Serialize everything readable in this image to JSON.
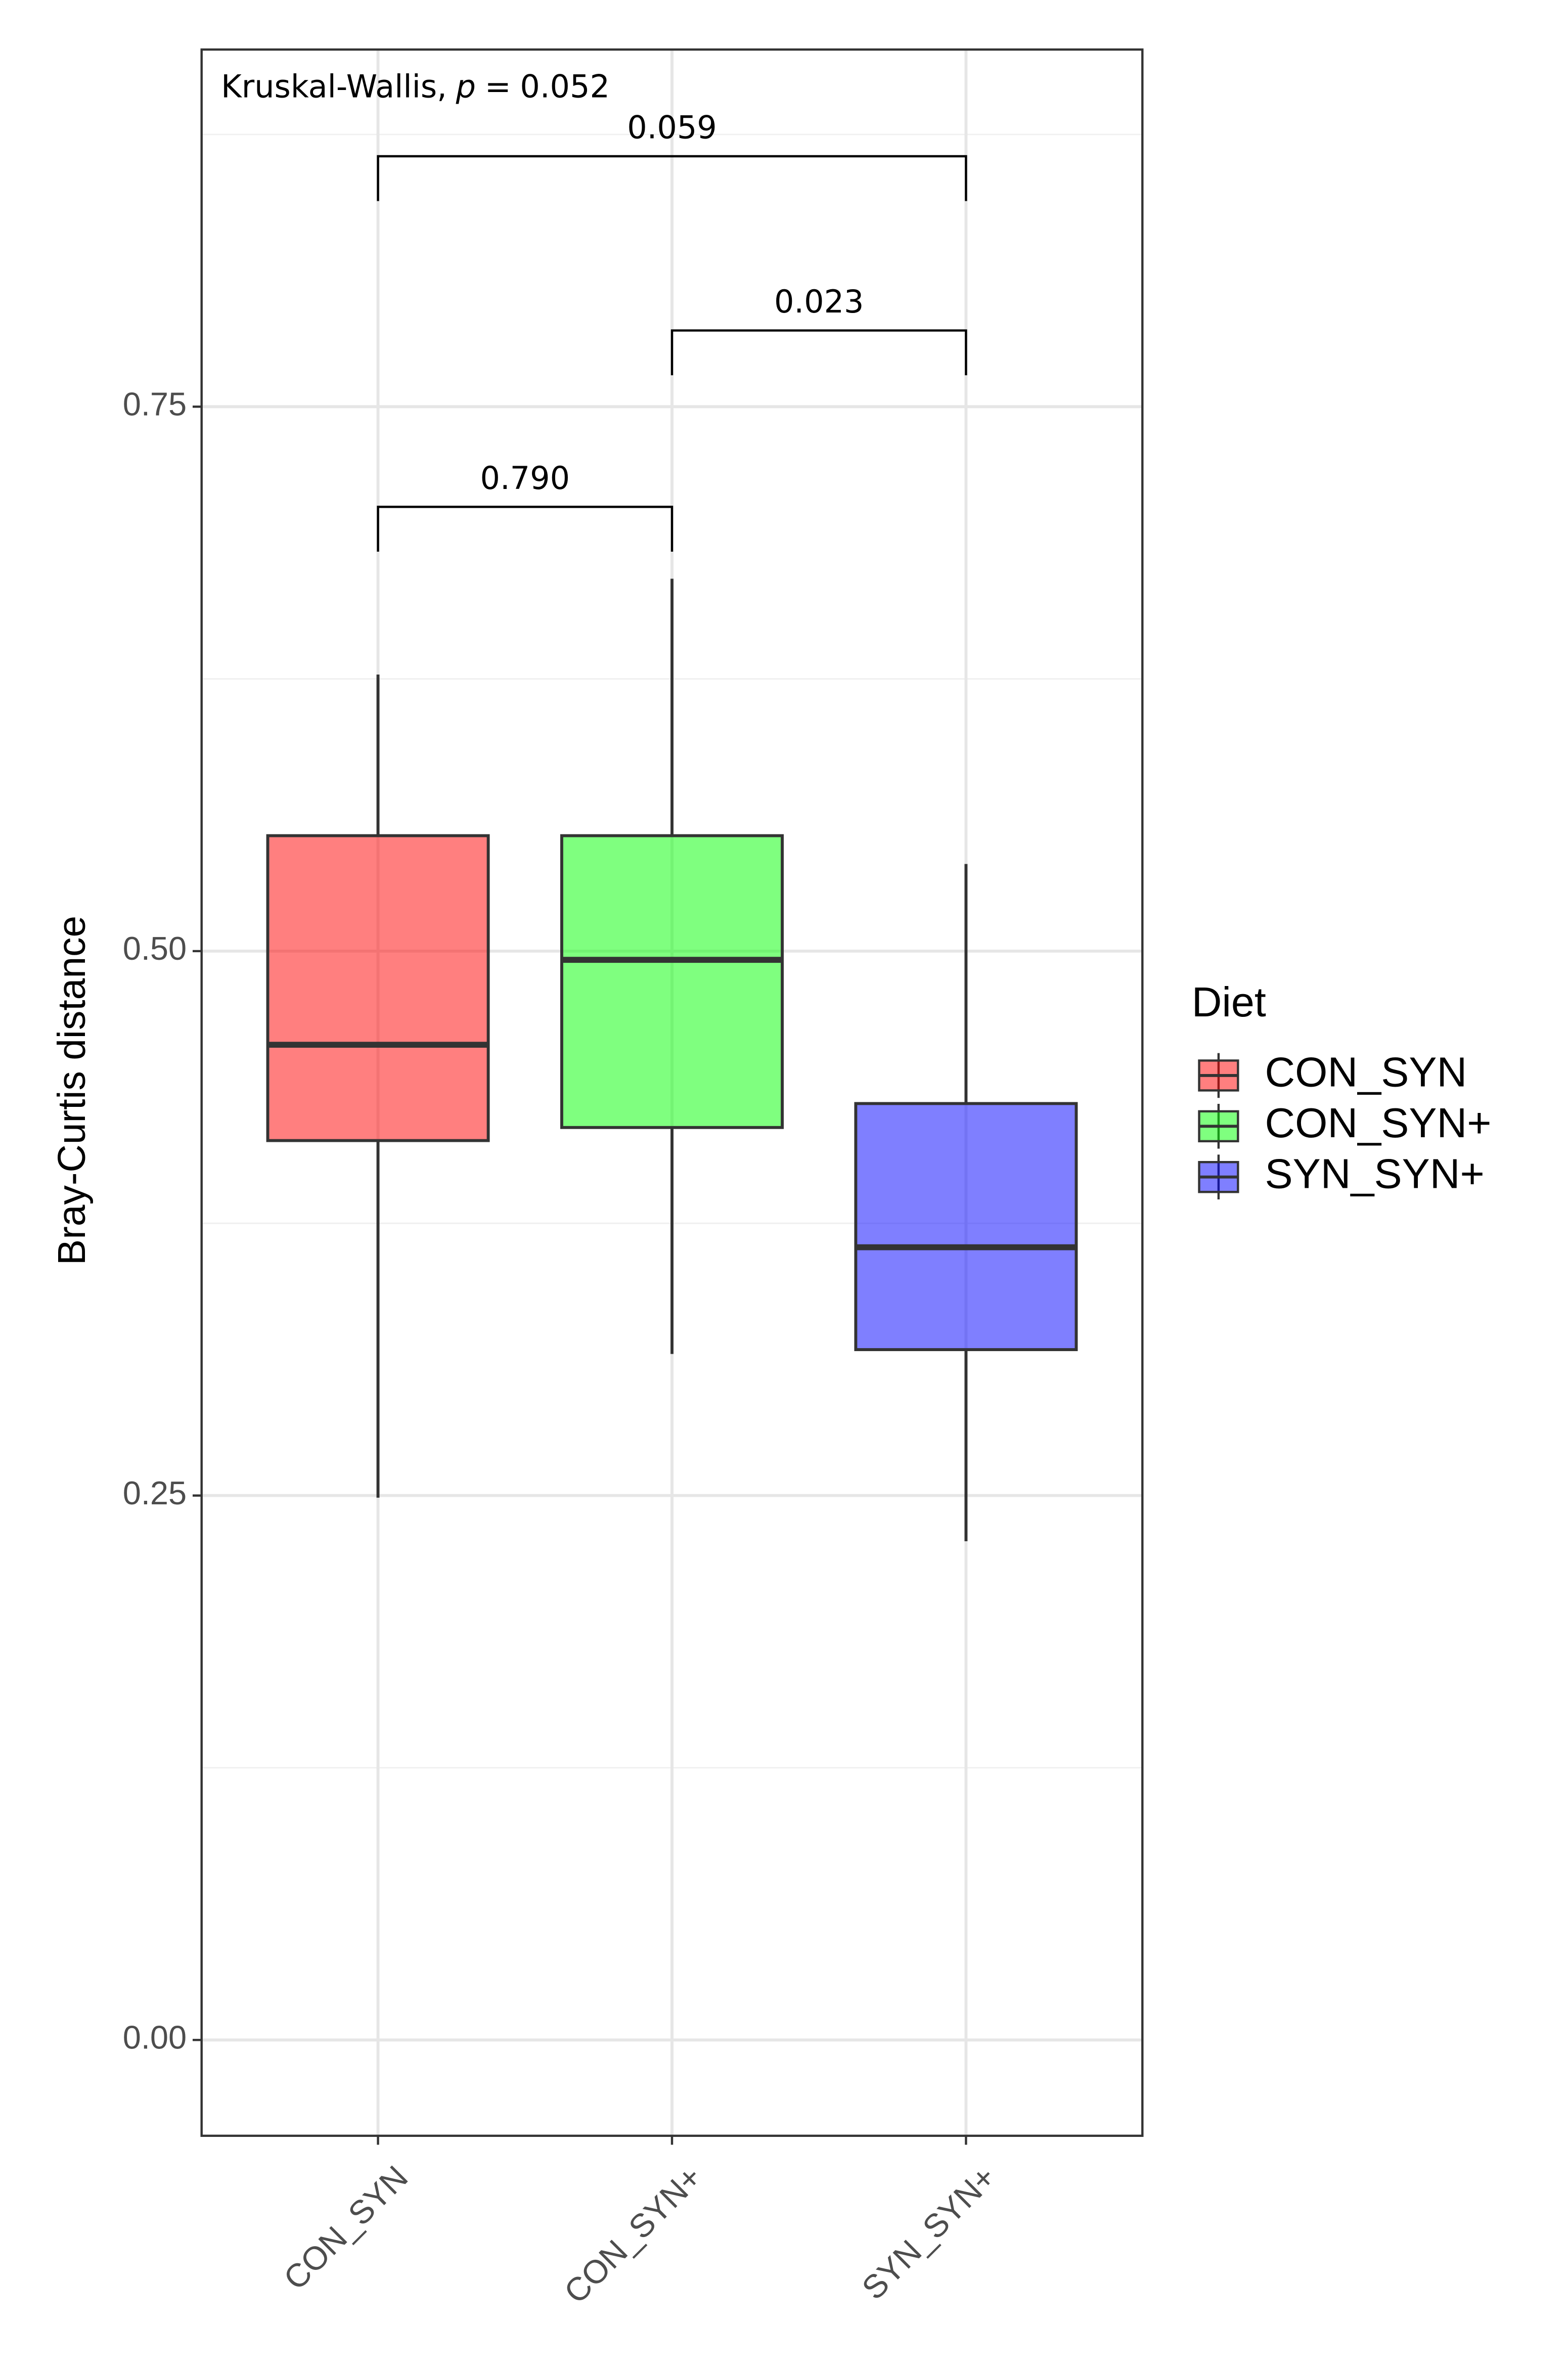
{
  "chart_data": {
    "type": "box",
    "y_label": "Bray-Curtis distance",
    "categories": [
      "CON_SYN",
      "CON_SYN+",
      "SYN_SYN+"
    ],
    "colors": [
      "#ff0000",
      "#00ff00",
      "#0000ff"
    ],
    "boxes": [
      {
        "min": 0.249,
        "q1": 0.413,
        "median": 0.457,
        "q3": 0.553,
        "max": 0.627
      },
      {
        "min": 0.315,
        "q1": 0.419,
        "median": 0.496,
        "q3": 0.553,
        "max": 0.671
      },
      {
        "min": 0.229,
        "q1": 0.317,
        "median": 0.364,
        "q3": 0.43,
        "max": 0.54
      }
    ],
    "ylim": [
      -0.044,
      0.914
    ],
    "yticks": [
      {
        "value": 0,
        "label": "0.00"
      },
      0.25,
      {
        "value": 0.5,
        "label": "0.50"
      },
      0.75
    ],
    "y_minor_grid": [
      0.125,
      0.375,
      0.625,
      0.875
    ],
    "grid": true,
    "legend_title": "Diet",
    "legend": "right",
    "kruskal": {
      "method": "Kruskal-Wallis,",
      "symbol": "p",
      "equals": "=",
      "p": 0.052
    },
    "comparisons": [
      {
        "from": 0,
        "to": 1,
        "y": 0.704,
        "label": "0.790"
      },
      {
        "from": 1,
        "to": 2,
        "y": 0.785,
        "label": "0.023"
      },
      {
        "from": 0,
        "to": 2,
        "y": 0.865,
        "label": "0.059"
      }
    ]
  }
}
